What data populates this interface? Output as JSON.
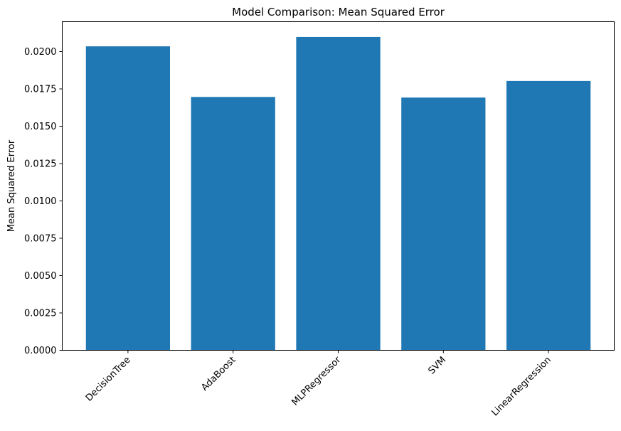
{
  "chart_data": {
    "type": "bar",
    "title": "Model Comparison: Mean Squared Error",
    "xlabel": "",
    "ylabel": "Mean Squared Error",
    "categories": [
      "DecisionTree",
      "AdaBoost",
      "MLPRegressor",
      "SVM",
      "LinearRegression"
    ],
    "values": [
      0.02035,
      0.01696,
      0.02098,
      0.01692,
      0.01803
    ],
    "ylim": [
      0,
      0.022
    ],
    "yticks": [
      0.0,
      0.0025,
      0.005,
      0.0075,
      0.01,
      0.0125,
      0.015,
      0.0175,
      0.02
    ],
    "ytick_labels": [
      "0.0000",
      "0.0025",
      "0.0050",
      "0.0075",
      "0.0100",
      "0.0125",
      "0.0150",
      "0.0175",
      "0.0200"
    ],
    "bar_color": "#1f77b4",
    "grid": false,
    "xtick_rotation_deg": 45
  }
}
